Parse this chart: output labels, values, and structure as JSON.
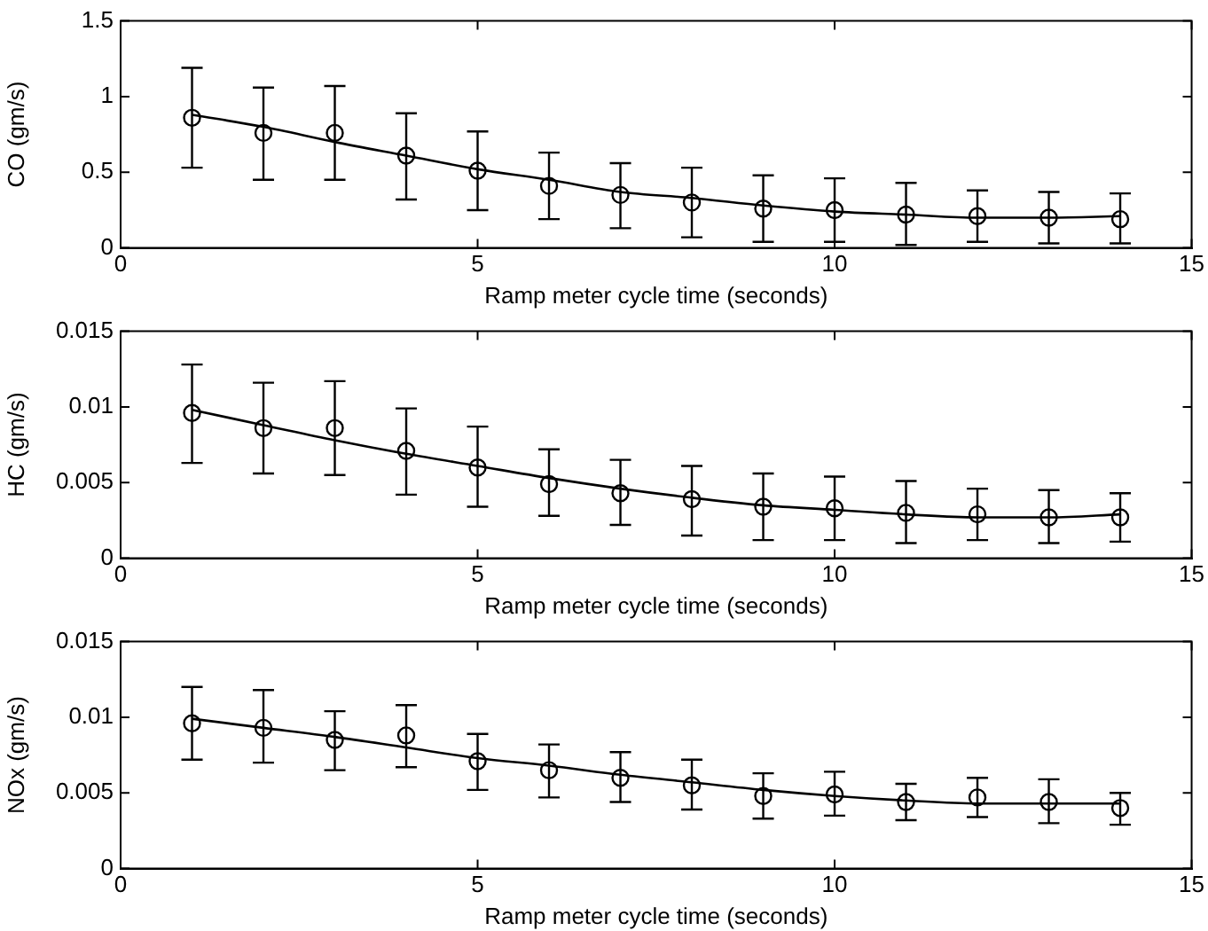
{
  "chart_data": [
    {
      "type": "scatter",
      "xlabel": "Ramp meter cycle time (seconds)",
      "ylabel": "CO (gm/s)",
      "x": [
        1,
        2,
        3,
        4,
        5,
        6,
        7,
        8,
        9,
        10,
        11,
        12,
        13,
        14
      ],
      "xlim": [
        0,
        15
      ],
      "xticks": [
        0,
        5,
        10,
        15
      ],
      "ylim": [
        0,
        1.5
      ],
      "yticks": [
        0,
        0.5,
        1,
        1.5
      ],
      "grid": false,
      "legend": false,
      "marker": "circle",
      "series": [
        {
          "type": "scatter",
          "color": "#000000",
          "values": [
            0.86,
            0.76,
            0.76,
            0.61,
            0.51,
            0.41,
            0.35,
            0.3,
            0.26,
            0.25,
            0.22,
            0.21,
            0.2,
            0.19
          ],
          "errors": [
            [
              0.53,
              1.19
            ],
            [
              0.45,
              1.06
            ],
            [
              0.45,
              1.07
            ],
            [
              0.32,
              0.89
            ],
            [
              0.25,
              0.77
            ],
            [
              0.19,
              0.63
            ],
            [
              0.13,
              0.56
            ],
            [
              0.07,
              0.53
            ],
            [
              0.04,
              0.48
            ],
            [
              0.04,
              0.46
            ],
            [
              0.02,
              0.43
            ],
            [
              0.04,
              0.38
            ],
            [
              0.03,
              0.37
            ],
            [
              0.03,
              0.36
            ]
          ]
        },
        {
          "type": "line",
          "color": "#000000",
          "marker": "none",
          "line_style": "solid",
          "x": [
            1,
            2,
            3,
            4,
            5,
            6,
            7,
            8,
            9,
            10,
            11,
            12,
            13,
            14
          ],
          "values": [
            0.88,
            0.8,
            0.7,
            0.61,
            0.52,
            0.45,
            0.37,
            0.33,
            0.28,
            0.24,
            0.22,
            0.2,
            0.2,
            0.21
          ]
        }
      ]
    },
    {
      "type": "scatter",
      "xlabel": "Ramp meter cycle time (seconds)",
      "ylabel": "HC (gm/s)",
      "x": [
        1,
        2,
        3,
        4,
        5,
        6,
        7,
        8,
        9,
        10,
        11,
        12,
        13,
        14
      ],
      "xlim": [
        0,
        15
      ],
      "xticks": [
        0,
        5,
        10,
        15
      ],
      "ylim": [
        0,
        0.015
      ],
      "yticks": [
        0,
        0.005,
        0.01,
        0.015
      ],
      "grid": false,
      "legend": false,
      "marker": "circle",
      "series": [
        {
          "type": "scatter",
          "color": "#000000",
          "values": [
            0.0096,
            0.0086,
            0.0086,
            0.0071,
            0.006,
            0.0049,
            0.0043,
            0.0039,
            0.0034,
            0.0033,
            0.003,
            0.0029,
            0.0027,
            0.0027
          ],
          "errors": [
            [
              0.0063,
              0.0128
            ],
            [
              0.0056,
              0.0116
            ],
            [
              0.0055,
              0.0117
            ],
            [
              0.0042,
              0.0099
            ],
            [
              0.0034,
              0.0087
            ],
            [
              0.0028,
              0.0072
            ],
            [
              0.0022,
              0.0065
            ],
            [
              0.0015,
              0.0061
            ],
            [
              0.0012,
              0.0056
            ],
            [
              0.0012,
              0.0054
            ],
            [
              0.001,
              0.0051
            ],
            [
              0.0012,
              0.0046
            ],
            [
              0.001,
              0.0045
            ],
            [
              0.0011,
              0.0043
            ]
          ]
        },
        {
          "type": "line",
          "color": "#000000",
          "marker": "none",
          "line_style": "solid",
          "x": [
            1,
            2,
            3,
            4,
            5,
            6,
            7,
            8,
            9,
            10,
            11,
            12,
            13,
            14
          ],
          "values": [
            0.0098,
            0.0088,
            0.0078,
            0.0069,
            0.0061,
            0.0053,
            0.0046,
            0.004,
            0.0035,
            0.0032,
            0.0029,
            0.0027,
            0.0027,
            0.0029
          ]
        }
      ]
    },
    {
      "type": "scatter",
      "xlabel": "Ramp meter cycle time (seconds)",
      "ylabel": "NOx (gm/s)",
      "x": [
        1,
        2,
        3,
        4,
        5,
        6,
        7,
        8,
        9,
        10,
        11,
        12,
        13,
        14
      ],
      "xlim": [
        0,
        15
      ],
      "xticks": [
        0,
        5,
        10,
        15
      ],
      "ylim": [
        0,
        0.015
      ],
      "yticks": [
        0,
        0.005,
        0.01,
        0.015
      ],
      "grid": false,
      "legend": false,
      "marker": "circle",
      "series": [
        {
          "type": "scatter",
          "color": "#000000",
          "values": [
            0.0096,
            0.0093,
            0.0085,
            0.0088,
            0.0071,
            0.0065,
            0.006,
            0.0055,
            0.0048,
            0.0049,
            0.0044,
            0.0047,
            0.0044,
            0.004
          ],
          "errors": [
            [
              0.0072,
              0.012
            ],
            [
              0.007,
              0.0118
            ],
            [
              0.0065,
              0.0104
            ],
            [
              0.0067,
              0.0108
            ],
            [
              0.0052,
              0.0089
            ],
            [
              0.0047,
              0.0082
            ],
            [
              0.0044,
              0.0077
            ],
            [
              0.0039,
              0.0072
            ],
            [
              0.0033,
              0.0063
            ],
            [
              0.0035,
              0.0064
            ],
            [
              0.0032,
              0.0056
            ],
            [
              0.0034,
              0.006
            ],
            [
              0.003,
              0.0059
            ],
            [
              0.0029,
              0.005
            ]
          ]
        },
        {
          "type": "line",
          "color": "#000000",
          "marker": "none",
          "line_style": "solid",
          "x": [
            1,
            2,
            3,
            4,
            5,
            6,
            7,
            8,
            9,
            10,
            11,
            12,
            13,
            14
          ],
          "values": [
            0.0099,
            0.0093,
            0.0087,
            0.008,
            0.0073,
            0.0068,
            0.0062,
            0.0057,
            0.0052,
            0.0048,
            0.0045,
            0.0043,
            0.0043,
            0.0043
          ]
        }
      ]
    }
  ]
}
